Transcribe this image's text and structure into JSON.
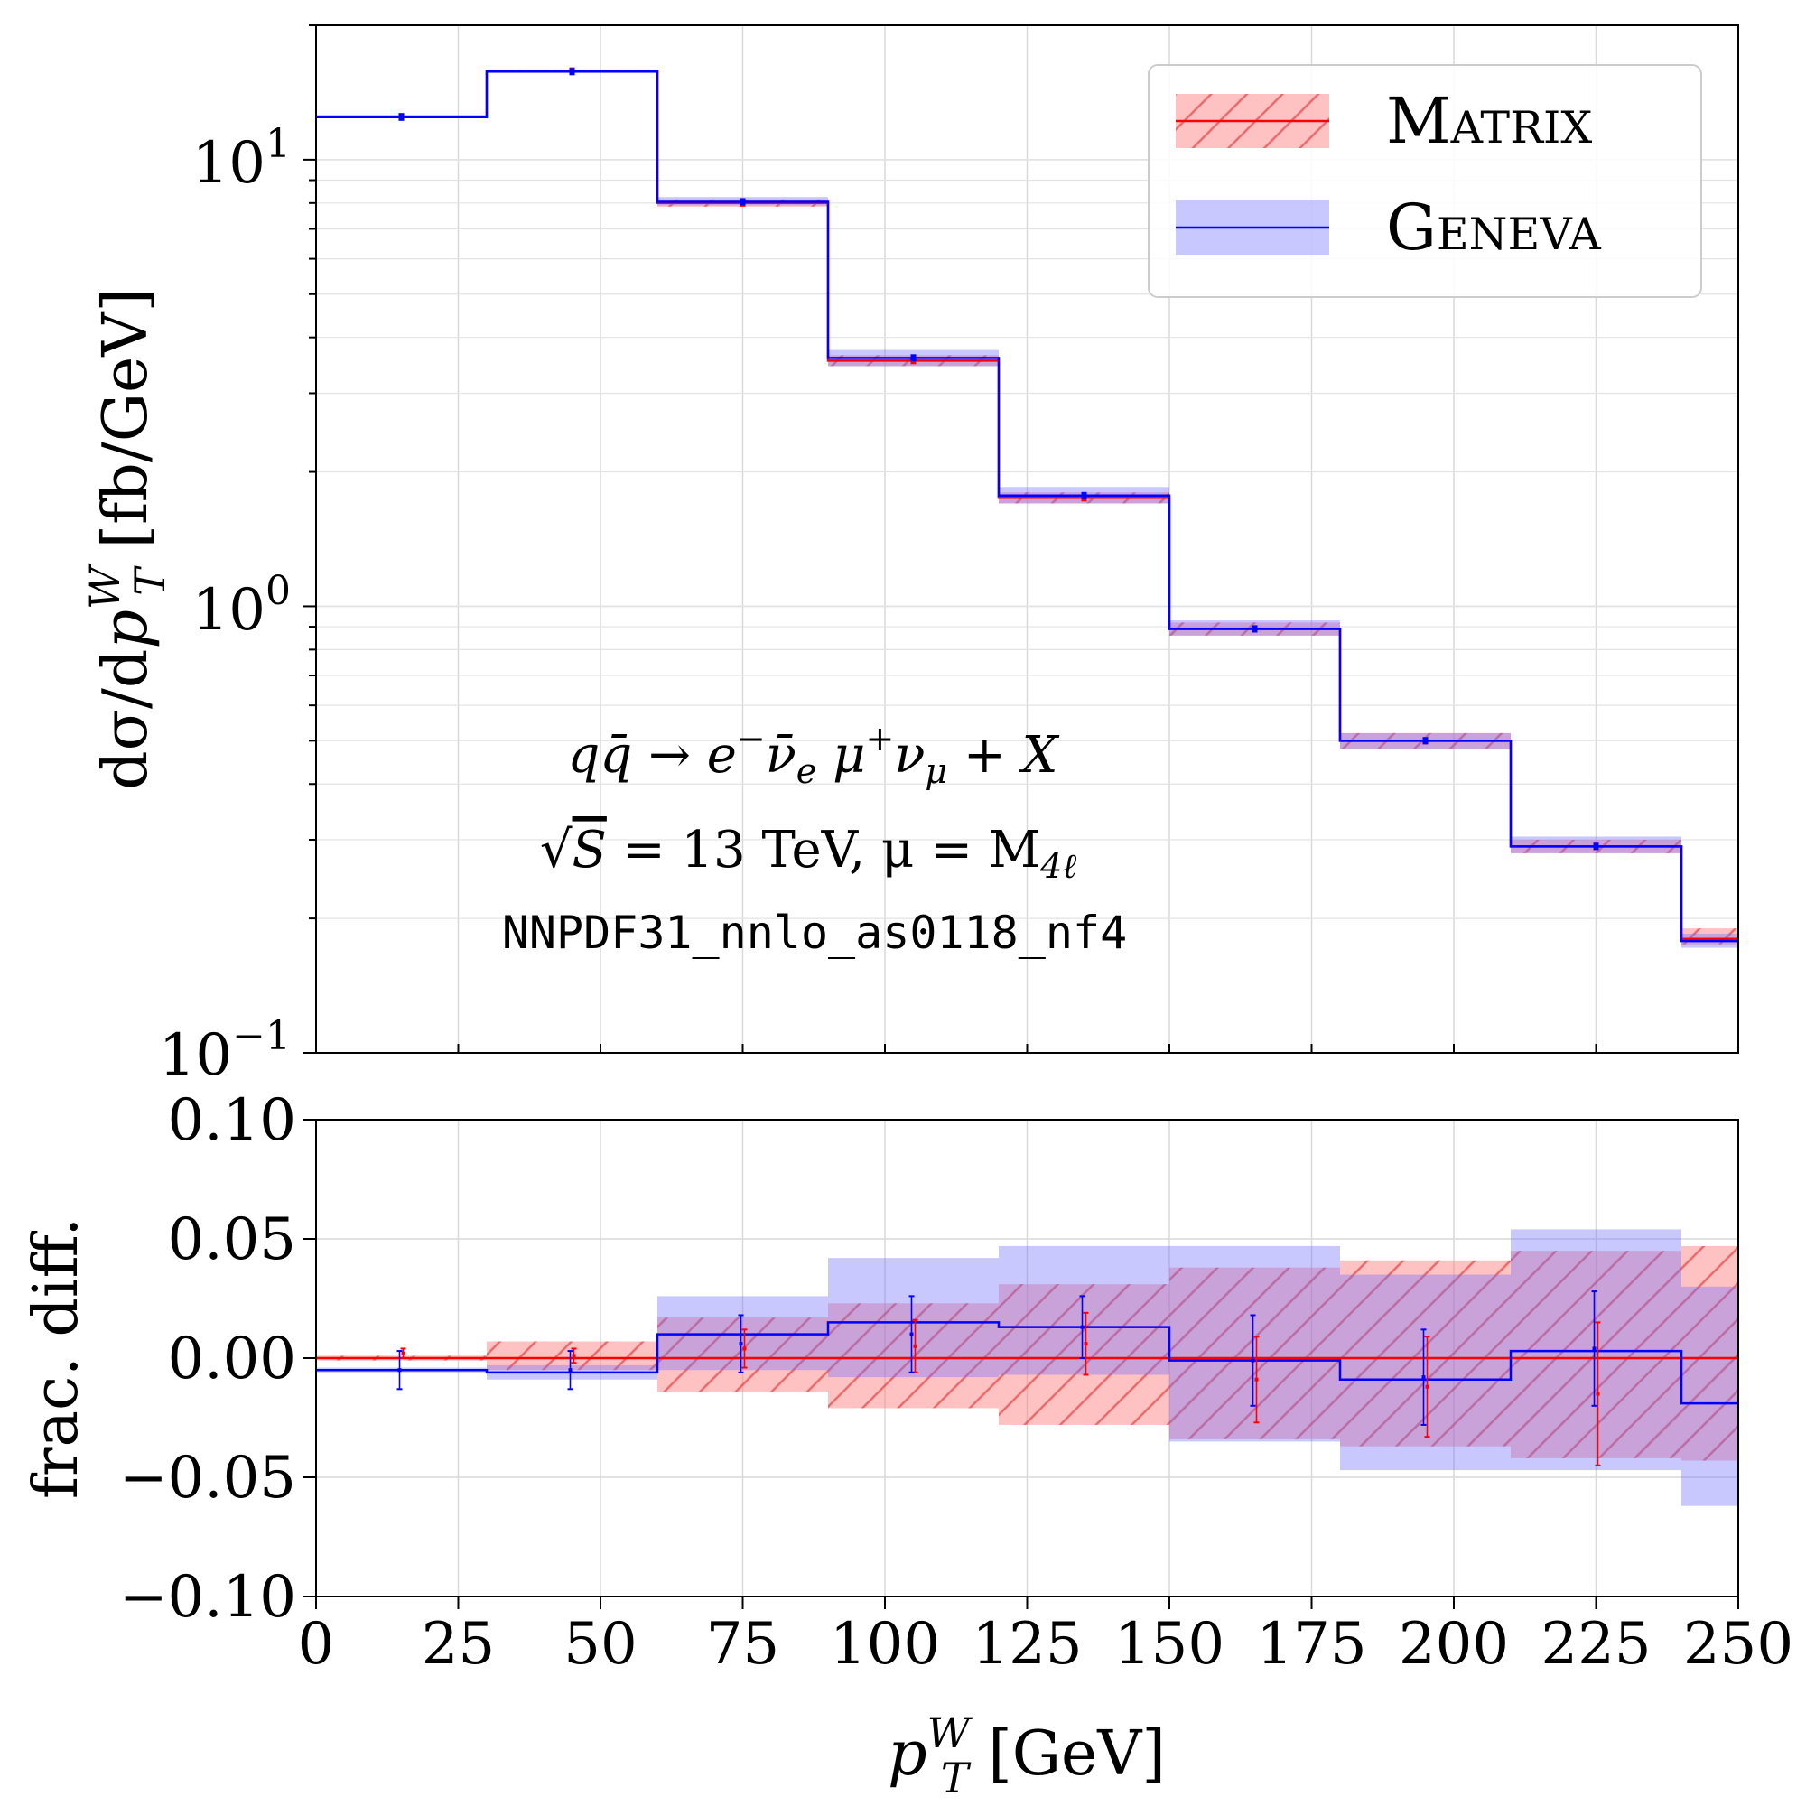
{
  "chart_data": [
    {
      "type": "line",
      "panel": "main",
      "step": "histogram",
      "yscale": "log",
      "xlim": [
        0,
        250
      ],
      "ylim": [
        0.1,
        20
      ],
      "grid": true,
      "bin_edges": [
        0,
        30,
        60,
        90,
        120,
        150,
        180,
        210,
        240,
        250
      ],
      "ylabel_parts": {
        "prefix": "dσ/d",
        "var": "p",
        "sup": "W",
        "sub": "T",
        "unit": " [fb/GeV]"
      },
      "yticks": [
        {
          "value": 10,
          "base": "10",
          "exp": "1"
        },
        {
          "value": 1,
          "base": "10",
          "exp": "0"
        },
        {
          "value": 0.1,
          "base": "10",
          "exp": "−1"
        }
      ],
      "series": [
        {
          "name": "Matrix",
          "color": "#ff0000",
          "values": [
            12.5,
            15.8,
            8.0,
            3.55,
            1.75,
            0.89,
            0.5,
            0.29,
            0.18
          ],
          "band_low": [
            12.45,
            15.7,
            7.85,
            3.45,
            1.7,
            0.86,
            0.48,
            0.28,
            0.175
          ],
          "band_high": [
            12.55,
            15.9,
            8.15,
            3.65,
            1.8,
            0.92,
            0.52,
            0.3,
            0.19
          ]
        },
        {
          "name": "Geneva",
          "color": "#0000ff",
          "values": [
            12.45,
            15.75,
            8.05,
            3.6,
            1.77,
            0.89,
            0.5,
            0.29,
            0.178
          ],
          "band_low": [
            12.4,
            15.65,
            7.9,
            3.45,
            1.7,
            0.86,
            0.48,
            0.28,
            0.172
          ],
          "band_high": [
            12.55,
            15.9,
            8.25,
            3.75,
            1.85,
            0.93,
            0.52,
            0.305,
            0.185
          ]
        }
      ],
      "legend": {
        "placement": "top-right",
        "entries": [
          "Matrix",
          "Geneva"
        ]
      },
      "annotations": {
        "process": {
          "lhs": "qq̄ → e",
          "e_sup": "−",
          "nu_e": "ν̄",
          "nu_e_sub": "e",
          "mu": " μ",
          "mu_sup": "+",
          "nu_mu": "ν",
          "nu_mu_sub": "μ",
          "rhs": " + X"
        },
        "energy": {
          "root": "√",
          "s": "S",
          "text": " = 13 TeV, μ = M",
          "sub": "4ℓ"
        },
        "pdf": "NNPDF31_nnlo_as0118_nf4"
      }
    },
    {
      "type": "line",
      "panel": "ratio",
      "step": "histogram",
      "xlim": [
        0,
        250
      ],
      "ylim": [
        -0.1,
        0.1
      ],
      "grid": true,
      "ylabel": "frac. diff.",
      "xlabel_parts": {
        "var": "p",
        "sup": "W",
        "sub": "T",
        "unit": " [GeV]"
      },
      "bin_edges": [
        0,
        30,
        60,
        90,
        120,
        150,
        180,
        210,
        240,
        250
      ],
      "xticks": [
        "0",
        "25",
        "50",
        "75",
        "100",
        "125",
        "150",
        "175",
        "200",
        "225",
        "250"
      ],
      "yticks": [
        "0.10",
        "0.05",
        "0.00",
        "−0.05",
        "−0.10"
      ],
      "series": [
        {
          "name": "Matrix",
          "color": "#ff0000",
          "values": [
            0,
            0,
            0,
            0,
            0,
            0,
            0,
            0,
            0
          ],
          "band_low": [
            -0.001,
            -0.005,
            -0.014,
            -0.021,
            -0.028,
            -0.034,
            -0.037,
            -0.042,
            -0.043
          ],
          "band_high": [
            0.001,
            0.007,
            0.017,
            0.023,
            0.031,
            0.038,
            0.041,
            0.045,
            0.047
          ],
          "points_x": [
            15,
            45,
            75,
            105,
            135,
            165,
            195,
            225
          ],
          "points_y": [
            0.002,
            0.001,
            0.004,
            0.005,
            0.006,
            -0.009,
            -0.012,
            -0.015
          ],
          "points_err": [
            0.002,
            0.003,
            0.008,
            0.011,
            0.013,
            0.018,
            0.021,
            0.03
          ]
        },
        {
          "name": "Geneva",
          "color": "#0000ff",
          "values": [
            -0.005,
            -0.006,
            0.01,
            0.015,
            0.013,
            -0.001,
            -0.009,
            0.003,
            -0.019
          ],
          "band_low": [
            -0.006,
            -0.009,
            -0.005,
            -0.008,
            -0.007,
            -0.035,
            -0.047,
            -0.047,
            -0.062
          ],
          "band_high": [
            -0.004,
            -0.003,
            0.026,
            0.042,
            0.047,
            0.047,
            0.035,
            0.054,
            0.03
          ],
          "points_x": [
            15,
            45,
            75,
            105,
            135,
            165,
            195,
            225
          ],
          "points_y": [
            -0.005,
            -0.005,
            0.006,
            0.01,
            0.013,
            -0.001,
            -0.008,
            0.004
          ],
          "points_err": [
            0.008,
            0.008,
            0.012,
            0.016,
            0.013,
            0.019,
            0.02,
            0.024
          ]
        }
      ]
    }
  ]
}
